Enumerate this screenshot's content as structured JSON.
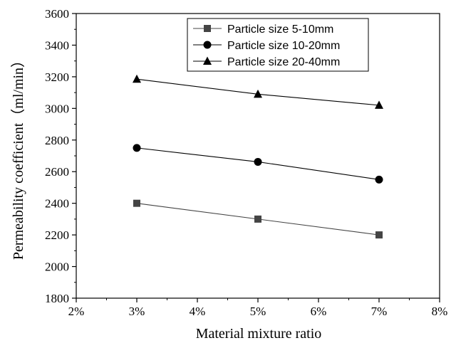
{
  "chart_data": {
    "type": "line",
    "xlabel": "Material mixture ratio",
    "ylabel": "Permeability coefficient（ml/min）",
    "xlim": [
      2,
      8
    ],
    "ylim": [
      1800,
      3600
    ],
    "x_tick_values": [
      2,
      3,
      4,
      5,
      6,
      7,
      8
    ],
    "x_tick_labels": [
      "2%",
      "3%",
      "4%",
      "5%",
      "6%",
      "7%",
      "8%"
    ],
    "y_tick_values": [
      1800,
      2000,
      2200,
      2400,
      2600,
      2800,
      3000,
      3200,
      3400,
      3600
    ],
    "y_tick_labels": [
      "1800",
      "2000",
      "2200",
      "2400",
      "2600",
      "2800",
      "3000",
      "3200",
      "3400",
      "3600"
    ],
    "x": [
      3,
      5,
      7
    ],
    "series": [
      {
        "name": "Particle size 5-10mm",
        "marker": "square",
        "color": "#444444",
        "values": [
          2400,
          2300,
          2200
        ]
      },
      {
        "name": "Particle size 10-20mm",
        "marker": "circle",
        "color": "#000000",
        "values": [
          2750,
          2662,
          2550
        ]
      },
      {
        "name": "Particle size 20-40mm",
        "marker": "triangle",
        "color": "#000000",
        "values": [
          3185,
          3090,
          3020
        ]
      }
    ],
    "legend_position": "top-right",
    "grid": false
  }
}
